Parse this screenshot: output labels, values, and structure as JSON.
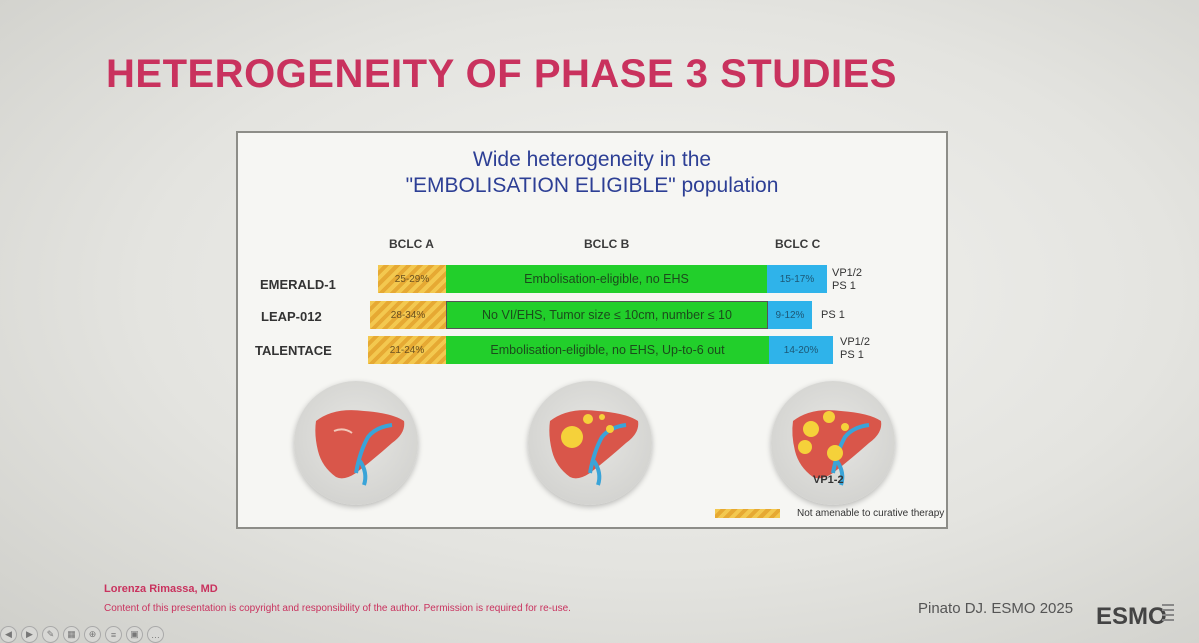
{
  "slide": {
    "title": "HETEROGENEITY OF PHASE 3 STUDIES",
    "title_color": "#c9325e"
  },
  "panel": {
    "title_line1": "Wide heterogeneity in the",
    "title_line2": "\"EMBOLISATION ELIGIBLE\" population",
    "stages": [
      "BCLC A",
      "BCLC B",
      "BCLC C"
    ],
    "studies": [
      {
        "name": "EMERALD-1",
        "bclc_a": "25-29%",
        "bclc_b": "Embolisation-eligible, no EHS",
        "bclc_c": "15-17%",
        "criteria": [
          "VP1/2",
          "PS 1"
        ]
      },
      {
        "name": "LEAP-012",
        "bclc_a": "28-34%",
        "bclc_b": "No VI/EHS, Tumor size ≤ 10cm, number ≤ 10",
        "bclc_c": "9-12%",
        "criteria": [
          "PS 1"
        ]
      },
      {
        "name": "TALENTACE",
        "bclc_a": "21-24%",
        "bclc_b": "Embolisation-eligible, no EHS, Up-to-6 out",
        "bclc_c": "14-20%",
        "criteria": [
          "VP1/2",
          "PS 1"
        ]
      }
    ],
    "liver_caption": "VP1-2",
    "legend_label": "Not amenable to curative therapy",
    "colors": {
      "bclc_a": "#f3c84f",
      "bclc_b": "#22cf2b",
      "bclc_c": "#2fb3ea",
      "title": "#2d3f95"
    }
  },
  "footer": {
    "author": "Lorenza Rimassa, MD",
    "copyright": "Content of this presentation is copyright and responsibility of the author. Permission is required for re-use.",
    "citation": "Pinato DJ. ESMO 2025",
    "logo_text": "ESMO"
  },
  "toolbar": {
    "icons": [
      "previous-icon",
      "next-icon",
      "pen-icon",
      "slides-icon",
      "zoom-icon",
      "subtitles-icon",
      "camera-icon",
      "more-icon"
    ]
  }
}
